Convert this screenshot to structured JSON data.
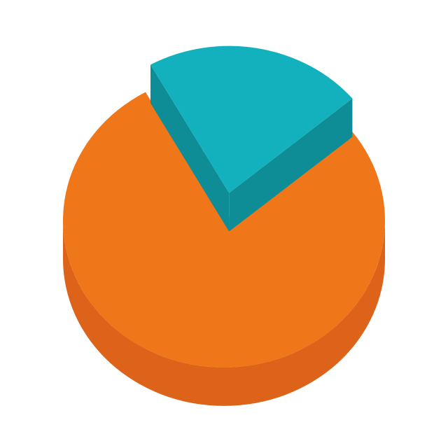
{
  "chart_data": {
    "type": "pie",
    "style": "3d-isometric-exploded",
    "title": "",
    "values": [
      78,
      22
    ],
    "colors": [
      "#ef7719",
      "#12b1bd"
    ],
    "side_colors": [
      "#dc6319",
      "#0f8d96"
    ],
    "exploded_slices": [
      1
    ],
    "legend": "none"
  }
}
